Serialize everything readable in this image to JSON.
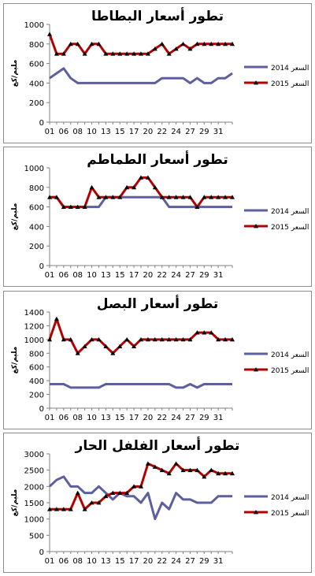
{
  "chart_data": [
    {
      "type": "line",
      "title": "تطور أسعار البطاطا",
      "xlabel": "",
      "ylabel": "مليم/كغ",
      "ylim": [
        0,
        1000
      ],
      "yticks": [
        "0",
        "200",
        "400",
        "600",
        "800",
        "1000"
      ],
      "xticks": [
        "01",
        "06",
        "08",
        "10",
        "13",
        "15",
        "17",
        "20",
        "22",
        "24",
        "27",
        "29",
        "31"
      ],
      "legend_position": "right",
      "series": [
        {
          "name": "السعر 2014",
          "color": "#5d5f9e",
          "marker": "none",
          "values": [
            450,
            500,
            550,
            450,
            400,
            400,
            400,
            400,
            400,
            400,
            400,
            400,
            400,
            400,
            400,
            400,
            450,
            450,
            450,
            450,
            400,
            450,
            400,
            400,
            450,
            450,
            500
          ]
        },
        {
          "name": "السعر 2015",
          "color": "#b30000",
          "marker": "triangle",
          "values": [
            900,
            700,
            700,
            800,
            800,
            700,
            800,
            800,
            700,
            700,
            700,
            700,
            700,
            700,
            700,
            750,
            800,
            700,
            750,
            800,
            750,
            800,
            800,
            800,
            800,
            800,
            800
          ]
        }
      ]
    },
    {
      "type": "line",
      "title": "تطور أسعار الطماطم",
      "xlabel": "",
      "ylabel": "مليم/كغ",
      "ylim": [
        0,
        1000
      ],
      "yticks": [
        "0",
        "200",
        "400",
        "600",
        "800",
        "1000"
      ],
      "xticks": [
        "01",
        "06",
        "08",
        "10",
        "13",
        "15",
        "17",
        "20",
        "22",
        "24",
        "27",
        "29",
        "31"
      ],
      "legend_position": "right",
      "series": [
        {
          "name": "السعر 2014",
          "color": "#5d5f9e",
          "marker": "none",
          "values": [
            700,
            700,
            600,
            600,
            600,
            600,
            600,
            600,
            700,
            700,
            700,
            700,
            700,
            700,
            700,
            700,
            700,
            600,
            600,
            600,
            600,
            600,
            600,
            600,
            600,
            600,
            600
          ]
        },
        {
          "name": "السعر 2015",
          "color": "#b30000",
          "marker": "triangle",
          "values": [
            700,
            700,
            600,
            600,
            600,
            600,
            800,
            700,
            700,
            700,
            700,
            800,
            800,
            900,
            900,
            800,
            700,
            700,
            700,
            700,
            700,
            600,
            700,
            700,
            700,
            700,
            700
          ]
        }
      ]
    },
    {
      "type": "line",
      "title": "تطور أسعار البصل",
      "xlabel": "",
      "ylabel": "مليم/كغ",
      "ylim": [
        0,
        1400
      ],
      "yticks": [
        "0",
        "200",
        "400",
        "600",
        "800",
        "1000",
        "1200",
        "1400"
      ],
      "xticks": [
        "01",
        "06",
        "08",
        "10",
        "13",
        "15",
        "17",
        "20",
        "22",
        "24",
        "27",
        "29",
        "31"
      ],
      "legend_position": "right",
      "series": [
        {
          "name": "السعر 2014",
          "color": "#5d5f9e",
          "marker": "none",
          "values": [
            350,
            350,
            350,
            300,
            300,
            300,
            300,
            300,
            350,
            350,
            350,
            350,
            350,
            350,
            350,
            350,
            350,
            350,
            300,
            300,
            350,
            300,
            350,
            350,
            350,
            350,
            350
          ]
        },
        {
          "name": "السعر 2015",
          "color": "#b30000",
          "marker": "triangle",
          "values": [
            1000,
            1300,
            1000,
            1000,
            800,
            900,
            1000,
            1000,
            900,
            800,
            900,
            1000,
            900,
            1000,
            1000,
            1000,
            1000,
            1000,
            1000,
            1000,
            1000,
            1100,
            1100,
            1100,
            1000,
            1000,
            1000
          ]
        }
      ]
    },
    {
      "type": "line",
      "title": "تطور أسعار الفلفل الحار",
      "xlabel": "",
      "ylabel": "مليم/كغ",
      "ylim": [
        0,
        3000
      ],
      "yticks": [
        "0",
        "500",
        "1000",
        "1500",
        "2000",
        "2500",
        "3000"
      ],
      "xticks": [
        "01",
        "06",
        "08",
        "10",
        "13",
        "15",
        "17",
        "20",
        "22",
        "24",
        "27",
        "29",
        "31"
      ],
      "legend_position": "right",
      "series": [
        {
          "name": "السعر 2014",
          "color": "#5d5f9e",
          "marker": "none",
          "values": [
            2000,
            2200,
            2300,
            2000,
            2000,
            1800,
            1800,
            2000,
            1800,
            1600,
            1800,
            1700,
            1700,
            1500,
            1800,
            1000,
            1500,
            1300,
            1800,
            1600,
            1600,
            1500,
            1500,
            1500,
            1700,
            1700,
            1700
          ]
        },
        {
          "name": "السعر 2015",
          "color": "#b30000",
          "marker": "triangle",
          "values": [
            1300,
            1300,
            1300,
            1300,
            1800,
            1300,
            1500,
            1500,
            1700,
            1800,
            1800,
            1800,
            2000,
            2000,
            2700,
            2600,
            2500,
            2400,
            2700,
            2500,
            2500,
            2500,
            2300,
            2500,
            2400,
            2400,
            2400
          ]
        }
      ]
    }
  ]
}
